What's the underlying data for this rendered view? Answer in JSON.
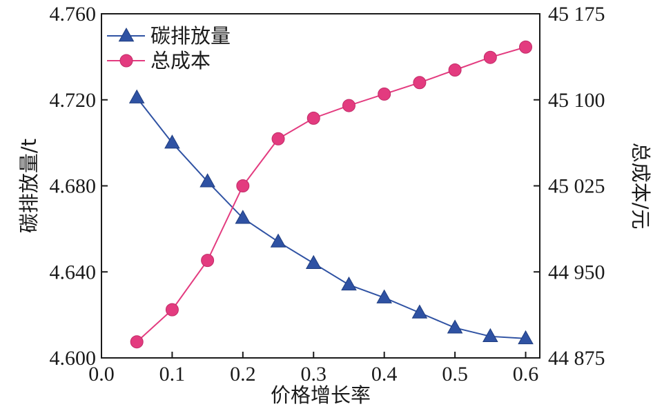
{
  "chart_data": {
    "type": "line",
    "x": [
      0.05,
      0.1,
      0.15,
      0.2,
      0.25,
      0.3,
      0.35,
      0.4,
      0.45,
      0.5,
      0.55,
      0.6
    ],
    "xlabel": "价格增长率",
    "xlim": [
      0.0,
      0.62
    ],
    "x_ticks": [
      "0.0",
      "0.1",
      "0.2",
      "0.3",
      "0.4",
      "0.5",
      "0.6"
    ],
    "x_tick_values": [
      0.0,
      0.1,
      0.2,
      0.3,
      0.4,
      0.5,
      0.6
    ],
    "ylabel_left": "碳排放量/t",
    "ylim_left": [
      4.6,
      4.76
    ],
    "y_ticks_left": [
      "4.600",
      "4.640",
      "4.680",
      "4.720",
      "4.760"
    ],
    "y_tick_values_left": [
      4.6,
      4.64,
      4.68,
      4.72,
      4.76
    ],
    "ylabel_right": "总成本/元",
    "ylim_right": [
      44875,
      45175
    ],
    "y_ticks_right": [
      "44 875",
      "44 950",
      "45 025",
      "45 100",
      "45 175"
    ],
    "y_tick_values_right": [
      44875,
      44950,
      45025,
      45100,
      45175
    ],
    "grid": false,
    "legend_position": "top-left",
    "series": [
      {
        "name": "碳排放量",
        "axis": "left",
        "marker": "triangle",
        "color": "#2f52a3",
        "values": [
          4.721,
          4.7,
          4.682,
          4.665,
          4.654,
          4.644,
          4.634,
          4.628,
          4.621,
          4.614,
          4.61,
          4.609
        ]
      },
      {
        "name": "总成本",
        "axis": "right",
        "marker": "circle",
        "color": "#e33b7f",
        "values": [
          44889,
          44917,
          44960,
          45025,
          45066,
          45084,
          45095,
          45105,
          45115,
          45126,
          45137,
          45146
        ]
      }
    ]
  }
}
